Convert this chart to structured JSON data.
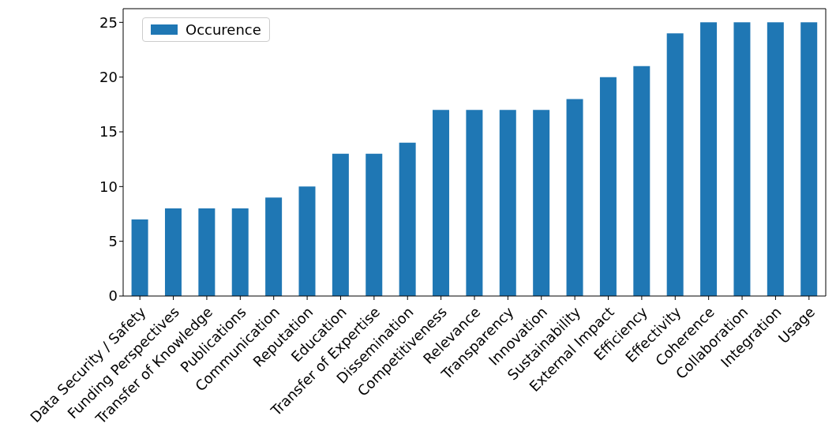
{
  "chart_data": {
    "type": "bar",
    "categories": [
      "Data Security / Safety",
      "Funding Perspectives",
      "Transfer of Knowledge",
      "Publications",
      "Communication",
      "Reputation",
      "Education",
      "Transfer of Expertise",
      "Dissemination",
      "Competitiveness",
      "Relevance",
      "Transparency",
      "Innovation",
      "Sustainability",
      "External Impact",
      "Efficiency",
      "Effectivity",
      "Coherence",
      "Collaboration",
      "Integration",
      "Usage"
    ],
    "series": [
      {
        "name": "Occurence",
        "color": "#1f77b4",
        "values": [
          7,
          8,
          8,
          8,
          9,
          10,
          13,
          13,
          14,
          17,
          17,
          17,
          17,
          18,
          20,
          21,
          24,
          25,
          25,
          25,
          25
        ]
      }
    ],
    "ylim": [
      0,
      26.25
    ],
    "yticks": [
      0,
      5,
      10,
      15,
      20,
      25
    ],
    "grid": false,
    "legend": "top left"
  }
}
